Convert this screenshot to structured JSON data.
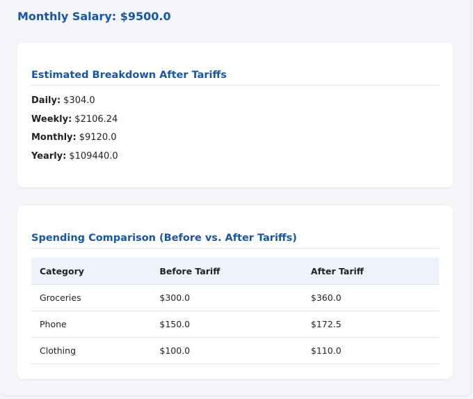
{
  "header": {
    "title": "Monthly Salary: $9500.0"
  },
  "breakdown": {
    "title": "Estimated Breakdown After Tariffs",
    "items": [
      {
        "label": "Daily:",
        "value": "$304.0"
      },
      {
        "label": "Weekly:",
        "value": "$2106.24"
      },
      {
        "label": "Monthly:",
        "value": "$9120.0"
      },
      {
        "label": "Yearly:",
        "value": "$109440.0"
      }
    ]
  },
  "comparison": {
    "title": "Spending Comparison (Before vs. After Tariffs)",
    "table": {
      "headers": [
        "Category",
        "Before Tariff",
        "After Tariff"
      ],
      "rows": [
        [
          "Groceries",
          "$300.0",
          "$360.0"
        ],
        [
          "Phone",
          "$150.0",
          "$172.5"
        ],
        [
          "Clothing",
          "$100.0",
          "$110.0"
        ]
      ]
    }
  }
}
